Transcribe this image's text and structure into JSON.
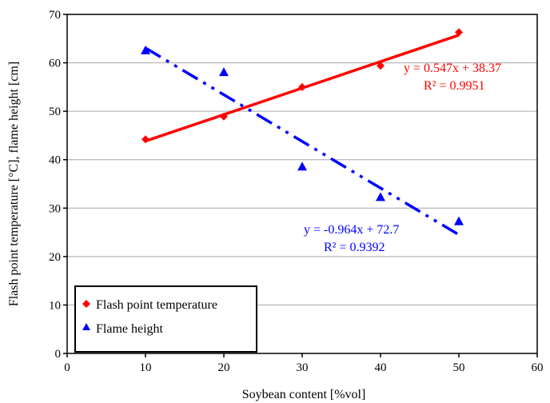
{
  "chart_data": {
    "type": "scatter",
    "xlabel": "Soybean content [%vol]",
    "ylabel": "Flash point temperature  [°C], flame height [cm]",
    "xlim": [
      0,
      60
    ],
    "ylim": [
      0,
      70
    ],
    "xticks": [
      0,
      10,
      20,
      30,
      40,
      50,
      60
    ],
    "yticks": [
      0,
      10,
      20,
      30,
      40,
      50,
      60,
      70
    ],
    "grid": "horizontal",
    "legend_position": "bottom-left",
    "series": [
      {
        "name": "Flash point temperature",
        "marker": "diamond",
        "color": "#ff0000",
        "x": [
          10,
          20,
          30,
          40,
          50
        ],
        "y": [
          44.2,
          48.9,
          55.0,
          59.4,
          66.3
        ],
        "trendline": {
          "slope": 0.547,
          "intercept": 38.37,
          "style": "solid"
        },
        "equation": "y = 0.547x + 38.37",
        "r2": "R² = 0.9951"
      },
      {
        "name": "Flame height",
        "marker": "triangle",
        "color": "#0000ff",
        "x": [
          10,
          20,
          30,
          40,
          50
        ],
        "y": [
          62.6,
          58.1,
          38.6,
          32.3,
          27.3
        ],
        "trendline": {
          "slope": -0.964,
          "intercept": 72.7,
          "style": "dash-dot"
        },
        "equation": "y = -0.964x + 72.7",
        "r2": "R² = 0.9392"
      }
    ]
  }
}
